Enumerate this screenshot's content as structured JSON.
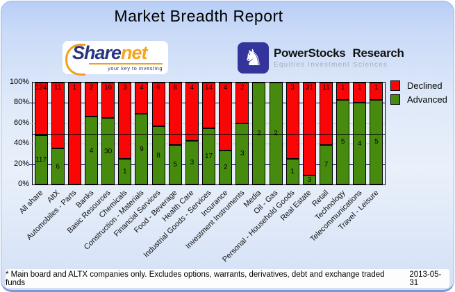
{
  "header": {
    "title": "Market Breadth Report"
  },
  "logos": {
    "sharenet": {
      "name_part1": "Share",
      "name_part2": "net",
      "tagline": "your key to investing"
    },
    "powerstocks": {
      "title1": "PowerStocks",
      "title2": "Research",
      "subtitle": "Equities Investment Sciences",
      "icon": "chess-knight-icon",
      "glyph": "♞"
    }
  },
  "chart_data": {
    "type": "bar",
    "stacked": true,
    "normalized_to_percent": true,
    "categories": [
      "All share",
      "AltX",
      "Automobiles - Parts",
      "Banks",
      "Basic Resources",
      "Chemicals",
      "Construction - Materials",
      "Financial Services",
      "Food - Beverage",
      "Health Care",
      "Industrial Goods - Services",
      "Insurance",
      "Investment Instruments",
      "Media",
      "Oil - Gas",
      "Personal - Household Goods",
      "Real Estate",
      "Retail",
      "Technology",
      "Telecommunications",
      "Travel - Leisure"
    ],
    "series": [
      {
        "name": "Declined",
        "color": "#FB0606",
        "values": [
          124,
          11,
          1,
          2,
          16,
          3,
          4,
          6,
          8,
          4,
          14,
          4,
          2,
          0,
          0,
          3,
          31,
          11,
          1,
          1,
          1
        ]
      },
      {
        "name": "Advanced",
        "color": "#478B0E",
        "values": [
          117,
          6,
          0,
          4,
          30,
          1,
          9,
          8,
          5,
          3,
          17,
          2,
          3,
          2,
          2,
          1,
          3,
          7,
          5,
          4,
          5
        ]
      }
    ],
    "y_ticks": [
      "0%",
      "20%",
      "40%",
      "60%",
      "80%",
      "100%"
    ],
    "ylim": [
      0,
      100
    ],
    "grid": "horizontal, 20% steps; navy at 20/80, gray at 40/60",
    "reference_line_pct": 50,
    "legend_position": "top-right",
    "bar_value_labels": "counts shown on segments"
  },
  "footer": {
    "note": "* Main board and ALTX companies only. Excludes options, warrants, derivatives, debt and exchange traded funds",
    "date": "2013-05-31"
  },
  "colors": {
    "declined": "#FB0606",
    "advanced": "#478B0E",
    "plot_bg": "#E9EFF6",
    "grid_navy": "#00007E",
    "grid_gray": "#C3C3C3"
  }
}
